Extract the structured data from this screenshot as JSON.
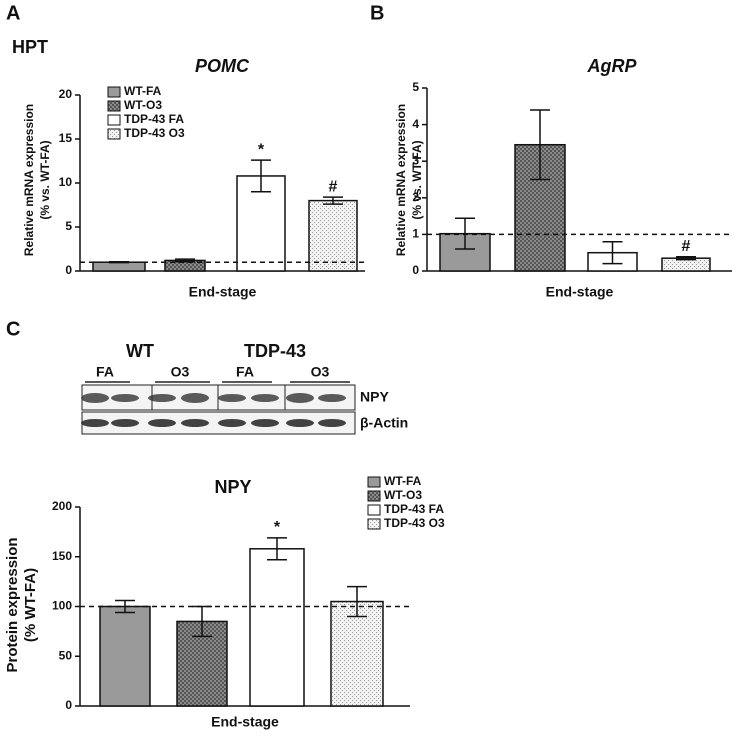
{
  "panel_labels": [
    "A",
    "B",
    "C"
  ],
  "region": "HPT",
  "blot": {
    "groups": [
      "WT",
      "TDP-43"
    ],
    "lanes": [
      "FA",
      "O3",
      "FA",
      "O3"
    ],
    "bands": [
      "NPY",
      "β-Actin"
    ]
  },
  "chart_data": [
    {
      "type": "bar",
      "title": "POMC",
      "ylabel": [
        "Relative mRNA expression",
        "(% vs. WT-FA)"
      ],
      "xlabel": "End-stage",
      "ylim": [
        0,
        20
      ],
      "yticks": [
        0,
        5,
        10,
        15,
        20
      ],
      "reference_line": 1,
      "legend": true,
      "series": [
        {
          "name": "WT-FA",
          "color": "#9a9a9a",
          "pattern": "solid",
          "values": [
            1.0
          ],
          "errors": [
            0.05
          ]
        },
        {
          "name": "WT-O3",
          "color": "#7a7a7a",
          "pattern": "crosshatch",
          "values": [
            1.2
          ],
          "errors": [
            0.15
          ]
        },
        {
          "name": "TDP-43 FA",
          "color": "#ffffff",
          "pattern": "solid",
          "values": [
            10.8
          ],
          "errors": [
            1.8
          ],
          "annotation": "*"
        },
        {
          "name": "TDP-43 O3",
          "color": "#e8e8e8",
          "pattern": "dots",
          "values": [
            8.0
          ],
          "errors": [
            0.4
          ],
          "annotation": "#"
        }
      ]
    },
    {
      "type": "bar",
      "title": "AgRP",
      "ylabel": [
        "Relative mRNA expression",
        "(% vs. WT-FA)"
      ],
      "xlabel": "End-stage",
      "ylim": [
        0,
        5
      ],
      "yticks": [
        0,
        1,
        2,
        3,
        4,
        5
      ],
      "reference_line": 1,
      "legend": false,
      "series": [
        {
          "color": "#9a9a9a",
          "pattern": "solid",
          "values": [
            1.02
          ],
          "errors": [
            0.42
          ]
        },
        {
          "color": "#7a7a7a",
          "pattern": "crosshatch",
          "values": [
            3.45
          ],
          "errors": [
            0.95
          ]
        },
        {
          "color": "#ffffff",
          "pattern": "solid",
          "values": [
            0.5
          ],
          "errors": [
            0.3
          ]
        },
        {
          "color": "#e8e8e8",
          "pattern": "dots",
          "values": [
            0.35
          ],
          "errors": [
            0.04
          ],
          "annotation": "#"
        }
      ]
    },
    {
      "type": "bar",
      "title": "NPY",
      "ylabel": [
        "Protein expression",
        "(% WT-FA)"
      ],
      "xlabel": "End-stage",
      "ylim": [
        0,
        200
      ],
      "yticks": [
        0,
        50,
        100,
        150,
        200
      ],
      "reference_line": 100,
      "legend": true,
      "series": [
        {
          "name": "WT-FA",
          "color": "#9a9a9a",
          "pattern": "solid",
          "values": [
            100
          ],
          "errors": [
            6
          ]
        },
        {
          "name": "WT-O3",
          "color": "#7a7a7a",
          "pattern": "crosshatch",
          "values": [
            85
          ],
          "errors": [
            15
          ]
        },
        {
          "name": "TDP-43 FA",
          "color": "#ffffff",
          "pattern": "solid",
          "values": [
            158
          ],
          "errors": [
            11
          ],
          "annotation": "*"
        },
        {
          "name": "TDP-43 O3",
          "color": "#e8e8e8",
          "pattern": "dots",
          "values": [
            105
          ],
          "errors": [
            15
          ]
        }
      ]
    }
  ]
}
